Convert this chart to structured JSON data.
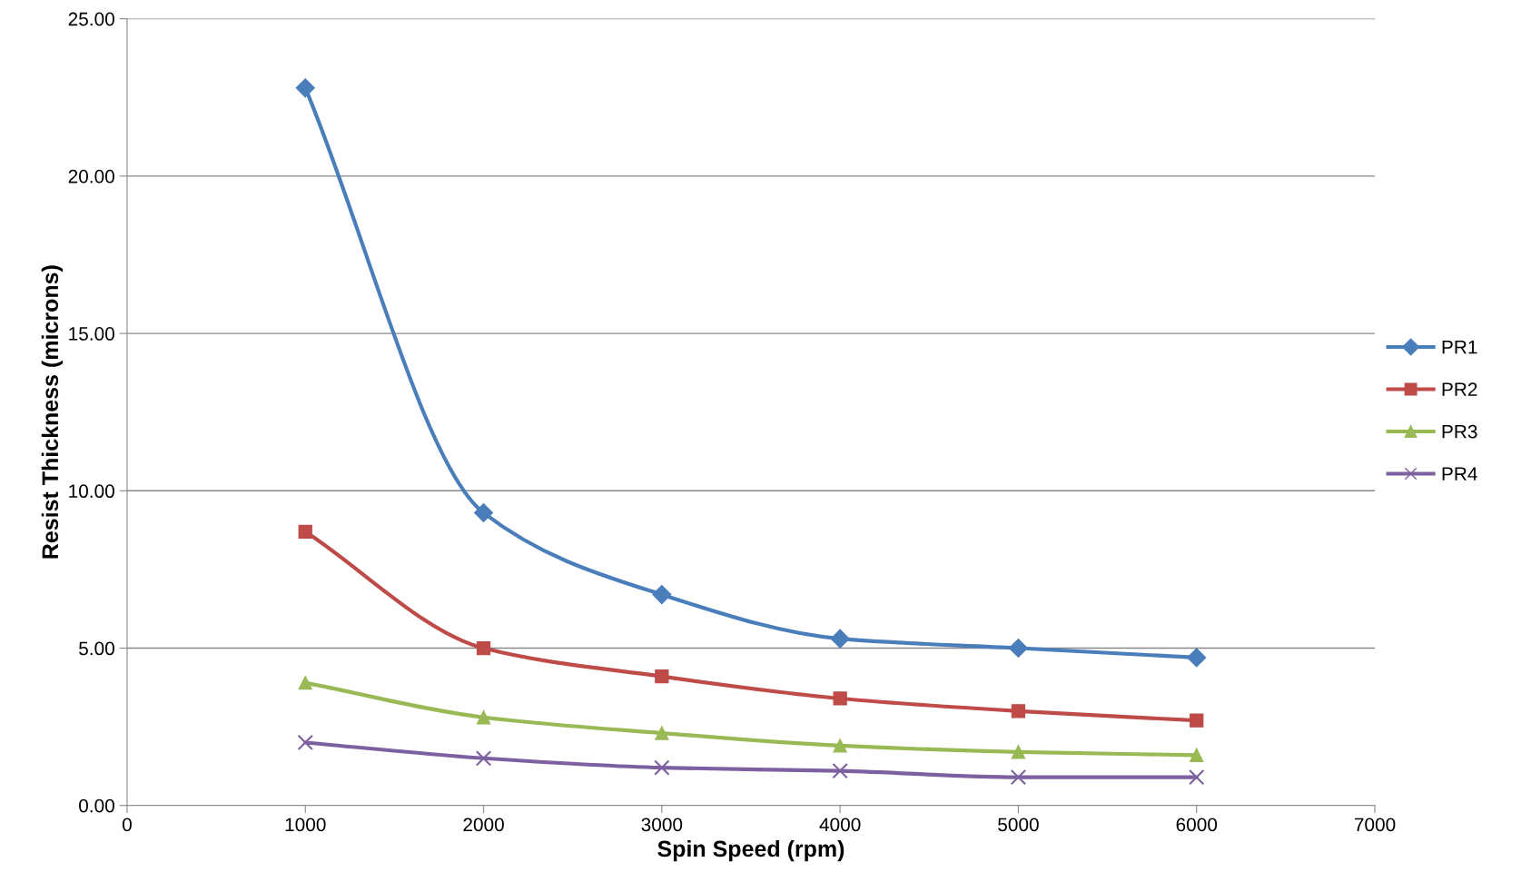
{
  "chart_data": {
    "type": "line",
    "xlabel": "Spin Speed (rpm)",
    "ylabel": "Resist Thickness (microns)",
    "x": [
      1000,
      2000,
      3000,
      4000,
      5000,
      6000
    ],
    "series": [
      {
        "name": "PR1",
        "color": "#4a7ebb",
        "marker": "diamond",
        "values": [
          22.8,
          9.3,
          6.7,
          5.3,
          5.0,
          4.7
        ]
      },
      {
        "name": "PR2",
        "color": "#be4b48",
        "marker": "square",
        "values": [
          8.7,
          5.0,
          4.1,
          3.4,
          3.0,
          2.7
        ]
      },
      {
        "name": "PR3",
        "color": "#98b954",
        "marker": "triangle",
        "values": [
          3.9,
          2.8,
          2.3,
          1.9,
          1.7,
          1.6
        ]
      },
      {
        "name": "PR4",
        "color": "#7d60a0",
        "marker": "cross",
        "values": [
          2.0,
          1.5,
          1.2,
          1.1,
          0.9,
          0.9
        ]
      }
    ],
    "xlim": [
      0,
      7000
    ],
    "xticks": [
      0,
      1000,
      2000,
      3000,
      4000,
      5000,
      6000,
      7000
    ],
    "ylim": [
      0,
      25
    ],
    "yticks": [
      {
        "value": 0,
        "label": "0.00"
      },
      {
        "value": 5,
        "label": "5.00"
      },
      {
        "value": 10,
        "label": "10.00"
      },
      {
        "value": 15,
        "label": "15.00"
      },
      {
        "value": 20,
        "label": "20.00"
      },
      {
        "value": 25,
        "label": "25.00"
      }
    ],
    "grid": "y",
    "legend": "right",
    "line_style": "solid"
  }
}
